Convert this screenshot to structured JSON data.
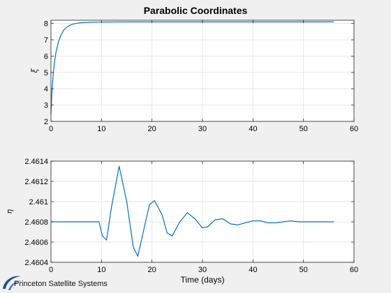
{
  "figure": {
    "title": "Parabolic Coordinates",
    "brand": "Princeton Satellite Systems"
  },
  "colors": {
    "background": "#f0f0f0",
    "axes_bg": "#ffffff",
    "line": "#0072bd",
    "grid": "#e6e6e6",
    "brand_blue": "#1f4f8f"
  },
  "chart_data": [
    {
      "type": "line",
      "title": "Parabolic Coordinates",
      "xlabel": "",
      "ylabel": "ξ",
      "xlim": [
        0,
        60
      ],
      "ylim": [
        2,
        8.2
      ],
      "grid": true,
      "xticks": [
        0,
        10,
        20,
        30,
        40,
        50,
        60
      ],
      "yticks": [
        2,
        3,
        4,
        5,
        6,
        7,
        8
      ],
      "xtick_labels": [
        "0",
        "10",
        "20",
        "30",
        "40",
        "50",
        "60"
      ],
      "ytick_labels": [
        "2",
        "3",
        "4",
        "5",
        "6",
        "7",
        "8"
      ],
      "series": [
        {
          "x": [
            0,
            0.1,
            0.25,
            0.5,
            0.75,
            1,
            1.5,
            2,
            2.5,
            3,
            4,
            5,
            6,
            8,
            10,
            15,
            20,
            30,
            40,
            50,
            56
          ],
          "y": [
            2.45,
            3.2,
            4.1,
            5.1,
            5.75,
            6.25,
            6.9,
            7.3,
            7.58,
            7.75,
            7.93,
            8.01,
            8.05,
            8.08,
            8.09,
            8.1,
            8.1,
            8.1,
            8.1,
            8.1,
            8.1
          ]
        }
      ]
    },
    {
      "type": "line",
      "title": "",
      "xlabel": "Time (days)",
      "ylabel": "η",
      "xlim": [
        0,
        60
      ],
      "ylim": [
        2.4604,
        2.4614
      ],
      "grid": true,
      "xticks": [
        0,
        10,
        20,
        30,
        40,
        50,
        60
      ],
      "yticks": [
        2.4604,
        2.4606,
        2.4608,
        2.461,
        2.4612,
        2.4614
      ],
      "xtick_labels": [
        "0",
        "10",
        "20",
        "30",
        "40",
        "50",
        "60"
      ],
      "ytick_labels": [
        "2.4604",
        "2.4606",
        "2.4608",
        "2.461",
        "2.4612",
        "2.4614"
      ],
      "series": [
        {
          "x": [
            0,
            5,
            9.5,
            10.2,
            11,
            12,
            13.5,
            15,
            16.3,
            17.2,
            18.5,
            19.5,
            20.5,
            22,
            23,
            24,
            25.5,
            27,
            28.5,
            30,
            31,
            32.5,
            34,
            35.5,
            37,
            38.5,
            40,
            41.5,
            43,
            44.5,
            46,
            47.5,
            49,
            51,
            53,
            56
          ],
          "y": [
            2.4608,
            2.4608,
            2.4608,
            2.46066,
            2.46062,
            2.46095,
            2.46135,
            2.461,
            2.46055,
            2.46046,
            2.46075,
            2.46097,
            2.46101,
            2.46087,
            2.46069,
            2.46066,
            2.4608,
            2.46089,
            2.46083,
            2.46074,
            2.46075,
            2.46082,
            2.46083,
            2.46078,
            2.46077,
            2.46079,
            2.46081,
            2.46081,
            2.46079,
            2.46079,
            2.4608,
            2.46081,
            2.4608,
            2.4608,
            2.4608,
            2.4608
          ]
        }
      ]
    }
  ]
}
